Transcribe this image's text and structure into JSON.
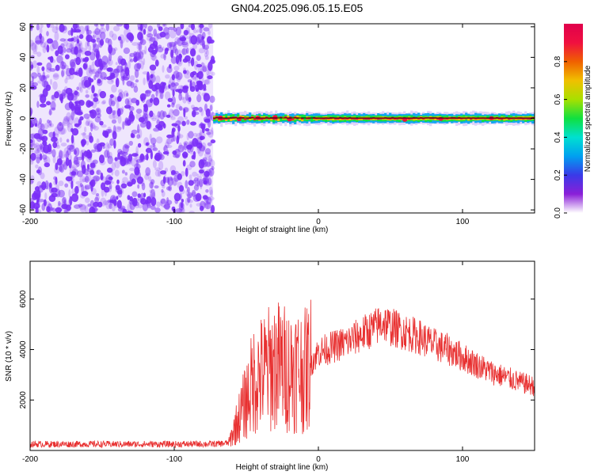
{
  "figure": {
    "title": "GN04.2025.096.05.15.E05"
  },
  "chart_data": [
    {
      "type": "heatmap",
      "xlabel": "Height of straight line (km)",
      "ylabel": "Frequency (Hz)",
      "xlim": [
        -200,
        150
      ],
      "ylim": [
        -62,
        62
      ],
      "xticks": [
        -200,
        -100,
        0,
        100
      ],
      "yticks": [
        -60,
        -40,
        -20,
        0,
        20,
        40,
        60
      ],
      "colorbar": {
        "label": "Normalized spectral amplitude",
        "range": [
          0,
          1
        ],
        "ticks": [
          0.0,
          0.2,
          0.4,
          0.6,
          0.8
        ],
        "colormap": [
          "#8a1fd8",
          "#3a3ae8",
          "#00a0f0",
          "#00e0d0",
          "#10e040",
          "#a8e000",
          "#f0c000",
          "#f06000",
          "#f01040",
          "#e0004c"
        ]
      },
      "noise_region": {
        "x_range": [
          -200,
          -73
        ],
        "level": 0.05,
        "color": "#7b2ff7"
      },
      "signal_band": {
        "x_range": [
          -73,
          150
        ],
        "center_hz": 0,
        "peak": 1.0
      }
    },
    {
      "type": "line",
      "xlabel": "Height of straight line (km)",
      "ylabel": "SNR (10 * v/v)",
      "xlim": [
        -200,
        150
      ],
      "ylim": [
        0,
        7500
      ],
      "xticks": [
        -200,
        -100,
        0,
        100
      ],
      "yticks": [
        2000,
        4000,
        6000
      ],
      "series": [
        {
          "color": "#e83030",
          "points": [
            [
              -200,
              250
            ],
            [
              -150,
              250
            ],
            [
              -100,
              250
            ],
            [
              -70,
              260
            ],
            [
              -62,
              300
            ],
            [
              -58,
              900
            ],
            [
              -50,
              2000
            ],
            [
              -45,
              2800
            ],
            [
              -40,
              3000
            ],
            [
              -35,
              3200
            ],
            [
              -30,
              3400
            ],
            [
              -25,
              3300
            ],
            [
              -20,
              3200
            ],
            [
              -15,
              3300
            ],
            [
              -10,
              3100
            ],
            [
              -5,
              3500
            ],
            [
              0,
              3900
            ],
            [
              10,
              4100
            ],
            [
              20,
              4300
            ],
            [
              30,
              4600
            ],
            [
              40,
              4900
            ],
            [
              45,
              5100
            ],
            [
              50,
              4900
            ],
            [
              60,
              4700
            ],
            [
              70,
              4500
            ],
            [
              80,
              4200
            ],
            [
              90,
              4000
            ],
            [
              100,
              3700
            ],
            [
              110,
              3400
            ],
            [
              120,
              3100
            ],
            [
              130,
              2900
            ],
            [
              140,
              2700
            ],
            [
              150,
              2550
            ]
          ]
        }
      ]
    }
  ]
}
